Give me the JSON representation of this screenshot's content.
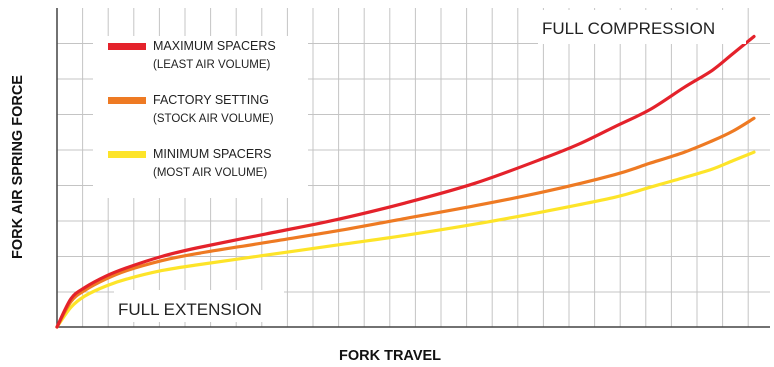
{
  "chart_data": {
    "type": "line",
    "title": "",
    "xlabel": "FORK TRAVEL",
    "ylabel": "FORK AIR SPRING FORCE",
    "xlim": [
      0,
      100
    ],
    "ylim": [
      0,
      100
    ],
    "grid": true,
    "legend_position": "top-left",
    "series": [
      {
        "name": "MAXIMUM SPACERS",
        "subtitle": "(LEAST AIR VOLUME)",
        "color": "#e4222b",
        "x": [
          0,
          2,
          4,
          7,
          10,
          15,
          20,
          30,
          40,
          50,
          60,
          70,
          75,
          80,
          85,
          90,
          94,
          97,
          100
        ],
        "y": [
          0,
          10,
          14,
          18,
          21,
          25,
          28,
          33,
          38,
          44,
          51,
          60,
          65,
          71,
          77,
          85,
          91,
          97,
          103
        ]
      },
      {
        "name": "FACTORY SETTING",
        "subtitle": "(STOCK AIR VOLUME)",
        "color": "#ee7a23",
        "x": [
          0,
          2,
          4,
          7,
          10,
          15,
          20,
          30,
          40,
          50,
          60,
          70,
          80,
          85,
          90,
          94,
          97,
          100
        ],
        "y": [
          0,
          9,
          13,
          17,
          20,
          23.5,
          26,
          30,
          34,
          38.5,
          43,
          48,
          54,
          58,
          62,
          66,
          69.5,
          74
        ]
      },
      {
        "name": "MINIMUM SPACERS",
        "subtitle": "(MOST AIR VOLUME)",
        "color": "#fde429",
        "x": [
          0,
          2,
          4,
          7,
          10,
          15,
          20,
          30,
          40,
          50,
          60,
          70,
          80,
          85,
          90,
          94,
          97,
          100
        ],
        "y": [
          0,
          7,
          11,
          14.5,
          17,
          20,
          22,
          25.5,
          29,
          32.5,
          36.5,
          41,
          46,
          49.5,
          53,
          56,
          59,
          62
        ]
      }
    ],
    "annotations": [
      {
        "text": "FULL COMPRESSION",
        "position": "top-right"
      },
      {
        "text": "FULL EXTENSION",
        "position": "bottom-left"
      }
    ]
  }
}
